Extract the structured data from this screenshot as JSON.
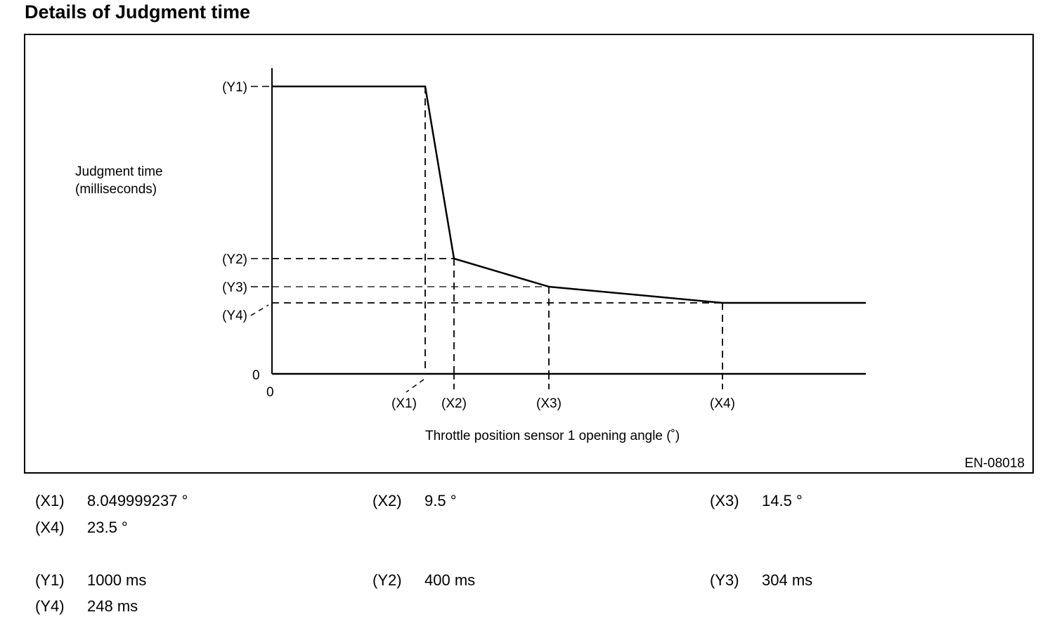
{
  "title": "Details of Judgment time",
  "figure_id": "EN-08018",
  "chart_data": {
    "type": "line",
    "title": "Details of Judgment time",
    "xlabel": "Throttle position sensor 1 opening angle (˚)",
    "ylabel_line1": "Judgment time",
    "ylabel_line2": "(milliseconds)",
    "x_origin_label": "0",
    "y_origin_label": "0",
    "x_ticks": [
      {
        "label": "(X1)",
        "value": 8.049999237
      },
      {
        "label": "(X2)",
        "value": 9.5
      },
      {
        "label": "(X3)",
        "value": 14.5
      },
      {
        "label": "(X4)",
        "value": 23.5
      }
    ],
    "y_ticks": [
      {
        "label": "(Y1)",
        "value": 1000
      },
      {
        "label": "(Y2)",
        "value": 400
      },
      {
        "label": "(Y3)",
        "value": 304
      },
      {
        "label": "(Y4)",
        "value": 248
      }
    ],
    "series": [
      {
        "name": "Judgment time",
        "points": [
          [
            0,
            1000
          ],
          [
            8.049999237,
            1000
          ],
          [
            9.5,
            400
          ],
          [
            14.5,
            304
          ],
          [
            23.5,
            248
          ],
          [
            "max",
            248
          ]
        ]
      }
    ],
    "grid": false,
    "scale_note": "schematic, not to scale"
  },
  "legend": {
    "x_items": [
      {
        "key": "(X1)",
        "value": "8.049999237 °"
      },
      {
        "key": "(X2)",
        "value": "9.5 °"
      },
      {
        "key": "(X3)",
        "value": "14.5 °"
      },
      {
        "key": "(X4)",
        "value": "23.5 °"
      }
    ],
    "y_items": [
      {
        "key": "(Y1)",
        "value": "1000 ms"
      },
      {
        "key": "(Y2)",
        "value": "400 ms"
      },
      {
        "key": "(Y3)",
        "value": "304 ms"
      },
      {
        "key": "(Y4)",
        "value": "248 ms"
      }
    ]
  }
}
